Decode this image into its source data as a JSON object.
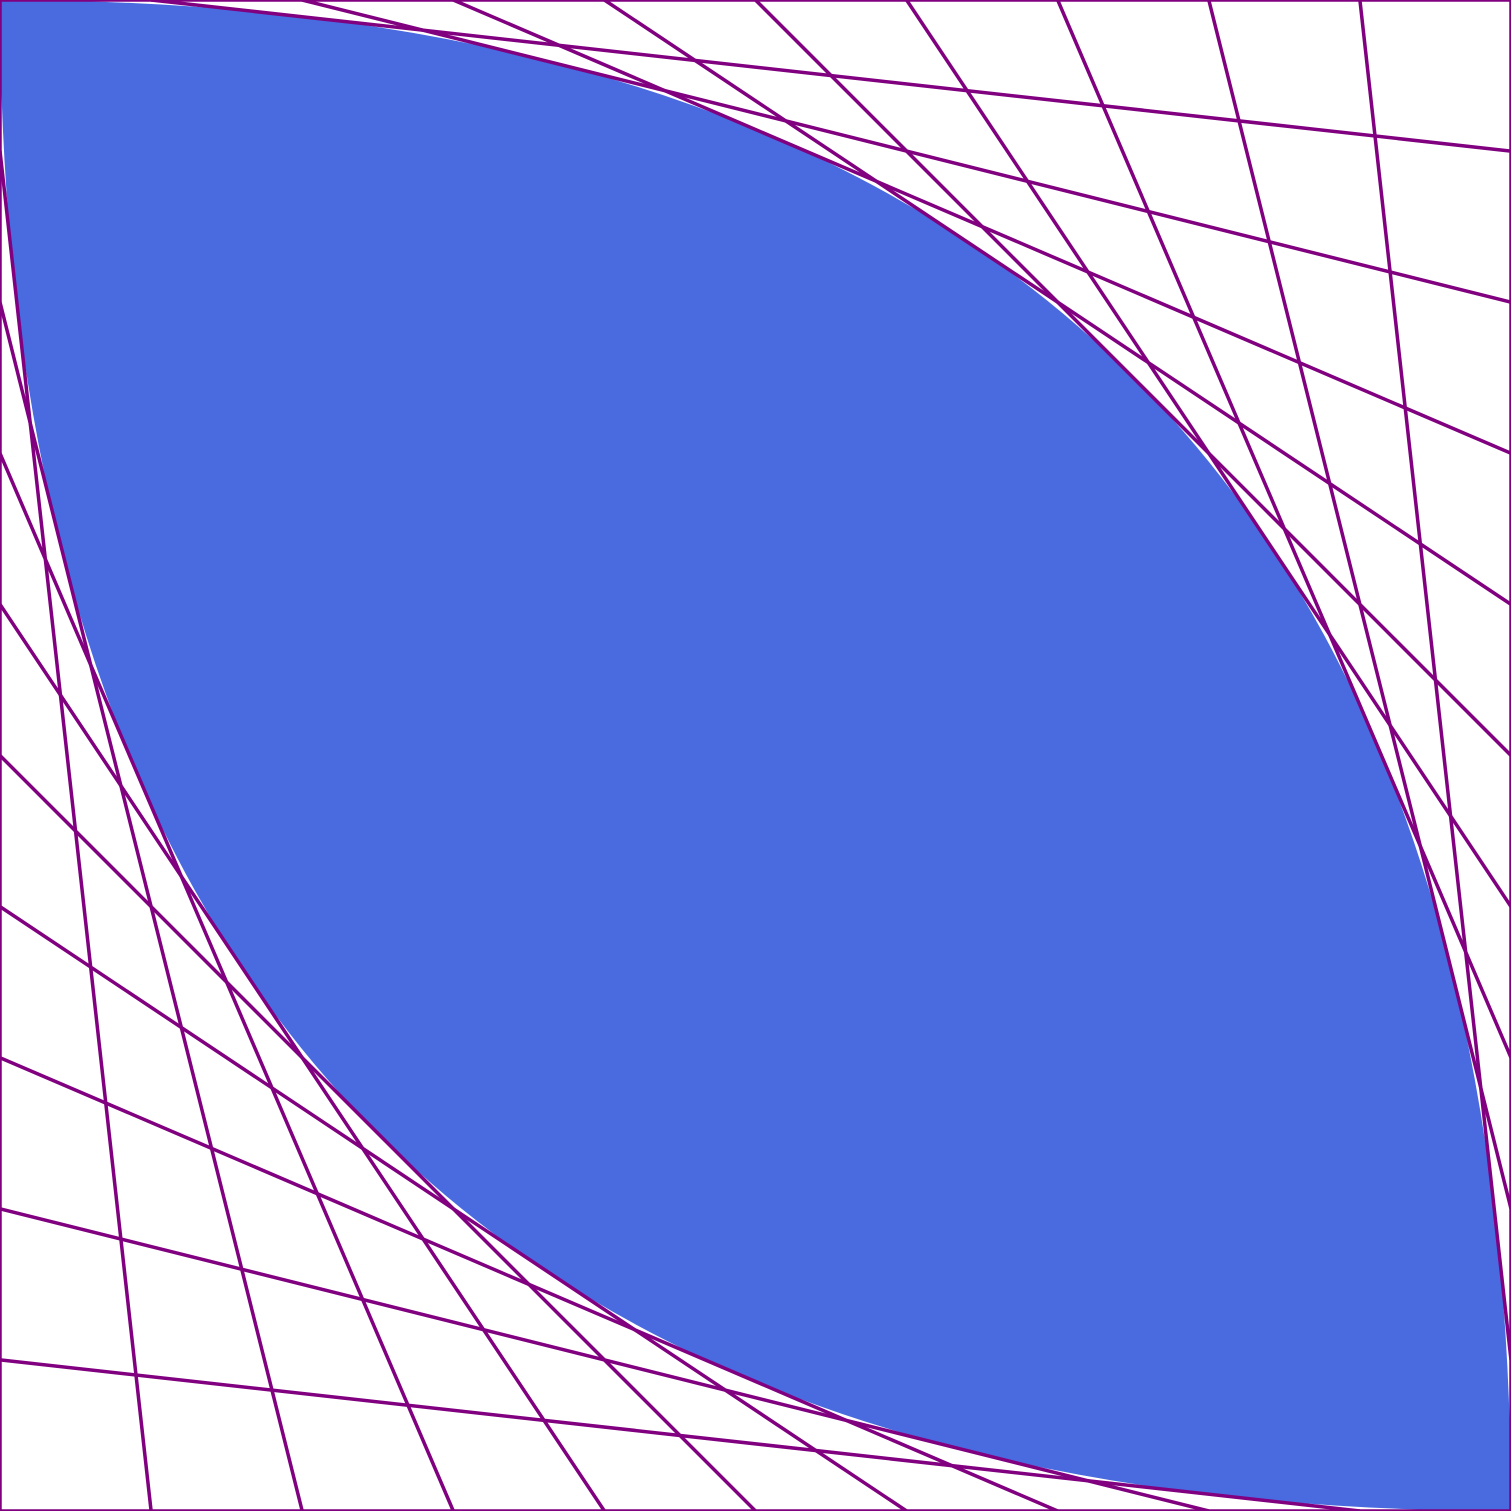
{
  "diagram": {
    "kind": "string-art envelope of parabolic curves",
    "line_color": "#800080",
    "fill_color": "#4a6ae0",
    "background": "#ffffff",
    "lines_per_family": 11
  }
}
